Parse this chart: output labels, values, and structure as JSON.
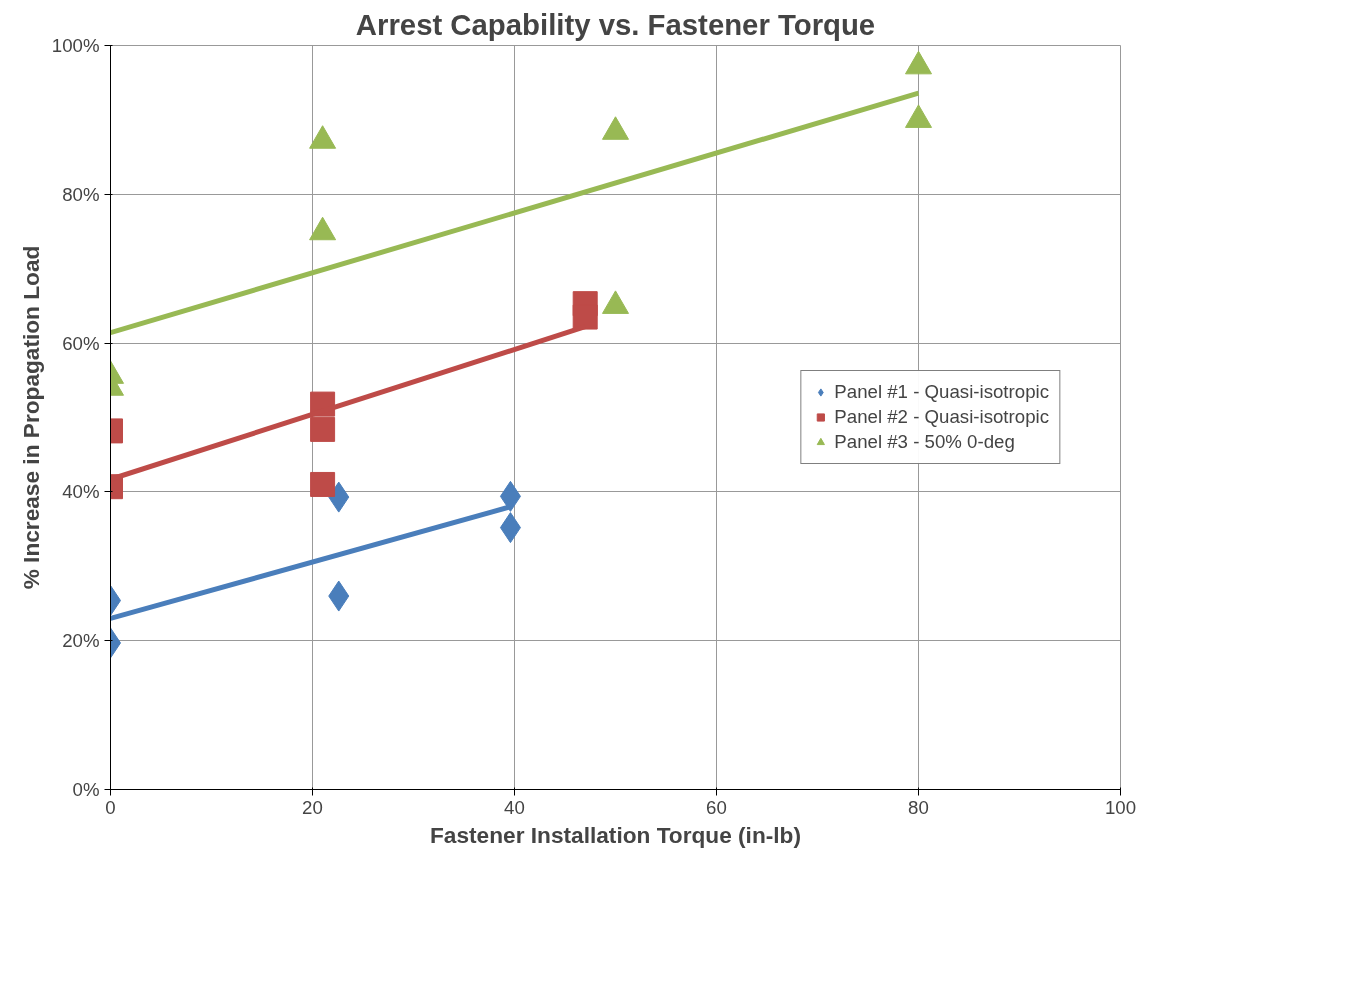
{
  "chart_data": {
    "type": "scatter",
    "title": "Arrest Capability vs. Fastener Torque",
    "xlabel": "Fastener Installation Torque (in-lb)",
    "ylabel": "% Increase in Propagation Load",
    "xlim": [
      0,
      100
    ],
    "xticks": [
      0,
      20,
      40,
      60,
      80,
      100
    ],
    "ylim": [
      0,
      100
    ],
    "yticks": [
      {
        "value": 0,
        "label": "0%"
      },
      {
        "value": 20,
        "label": "20%"
      },
      {
        "value": 40,
        "label": "40%"
      },
      {
        "value": 60,
        "label": "60%"
      },
      {
        "value": 80,
        "label": "80%"
      },
      {
        "value": 100,
        "label": "100%"
      }
    ],
    "grid": true,
    "legend": "right",
    "series": [
      {
        "name": "Panel #1 - Quasi-isotropic",
        "color": "#4a7ebb",
        "marker": "diamond",
        "x": [
          0,
          0,
          22.6,
          22.6,
          39.6,
          39.6
        ],
        "values": [
          25.4,
          19.7,
          39.3,
          26.0,
          39.4,
          35.2
        ]
      },
      {
        "name": "Panel #2 - Quasi-isotropic",
        "color": "#be4b48",
        "marker": "square",
        "x": [
          0,
          0,
          21,
          21,
          21,
          47,
          47
        ],
        "values": [
          48.2,
          40.7,
          51.8,
          48.4,
          41.0,
          65.3,
          63.5
        ]
      },
      {
        "name": "Panel #3 - 50% 0-deg",
        "color": "#98b954",
        "marker": "triangle",
        "x": [
          0,
          0,
          21,
          21,
          50,
          50,
          80,
          80
        ],
        "values": [
          55.6,
          54.0,
          87.2,
          74.9,
          88.4,
          65.0,
          97.2,
          90.0
        ]
      },
      {
        "type": "line",
        "color": "#4a7ebb",
        "x": [
          0,
          39.6
        ],
        "values": [
          23.0,
          38.0
        ]
      },
      {
        "type": "line",
        "color": "#be4b48",
        "x": [
          0,
          47
        ],
        "values": [
          41.7,
          62.2
        ]
      },
      {
        "type": "line",
        "color": "#98b954",
        "x": [
          0,
          80
        ],
        "values": [
          61.4,
          93.6
        ]
      }
    ]
  }
}
